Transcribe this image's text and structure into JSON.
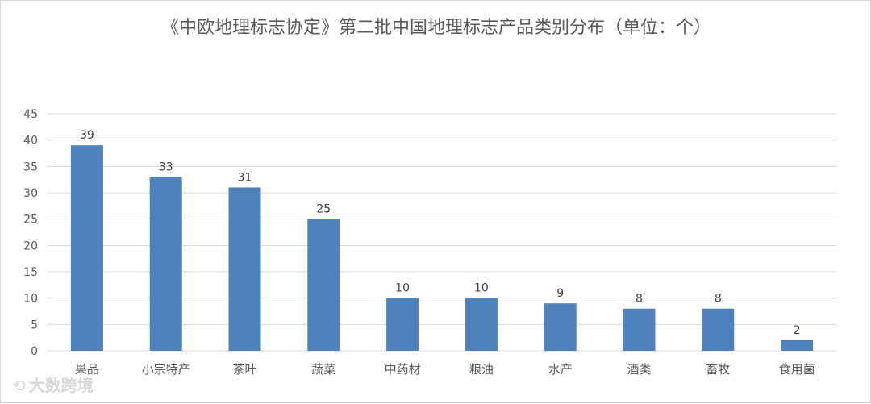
{
  "chart_data": {
    "type": "bar",
    "title": "《中欧地理标志协定》第二批中国地理标志产品类别分布（单位：个）",
    "categories": [
      "果品",
      "小宗特产",
      "茶叶",
      "蔬菜",
      "中药材",
      "粮油",
      "水产",
      "酒类",
      "畜牧",
      "食用菌"
    ],
    "values": [
      39,
      33,
      31,
      25,
      10,
      10,
      9,
      8,
      8,
      2
    ],
    "ylim": [
      0,
      45
    ],
    "yticks": [
      0,
      5,
      10,
      15,
      20,
      25,
      30,
      35,
      40,
      45
    ],
    "grid": true,
    "data_labels": true,
    "bar_color": "#4f81bd",
    "grid_color": "#d9d9d9",
    "text_color": "#595959"
  },
  "watermark": {
    "text": "大数跨境",
    "icon": "logo-icon"
  }
}
